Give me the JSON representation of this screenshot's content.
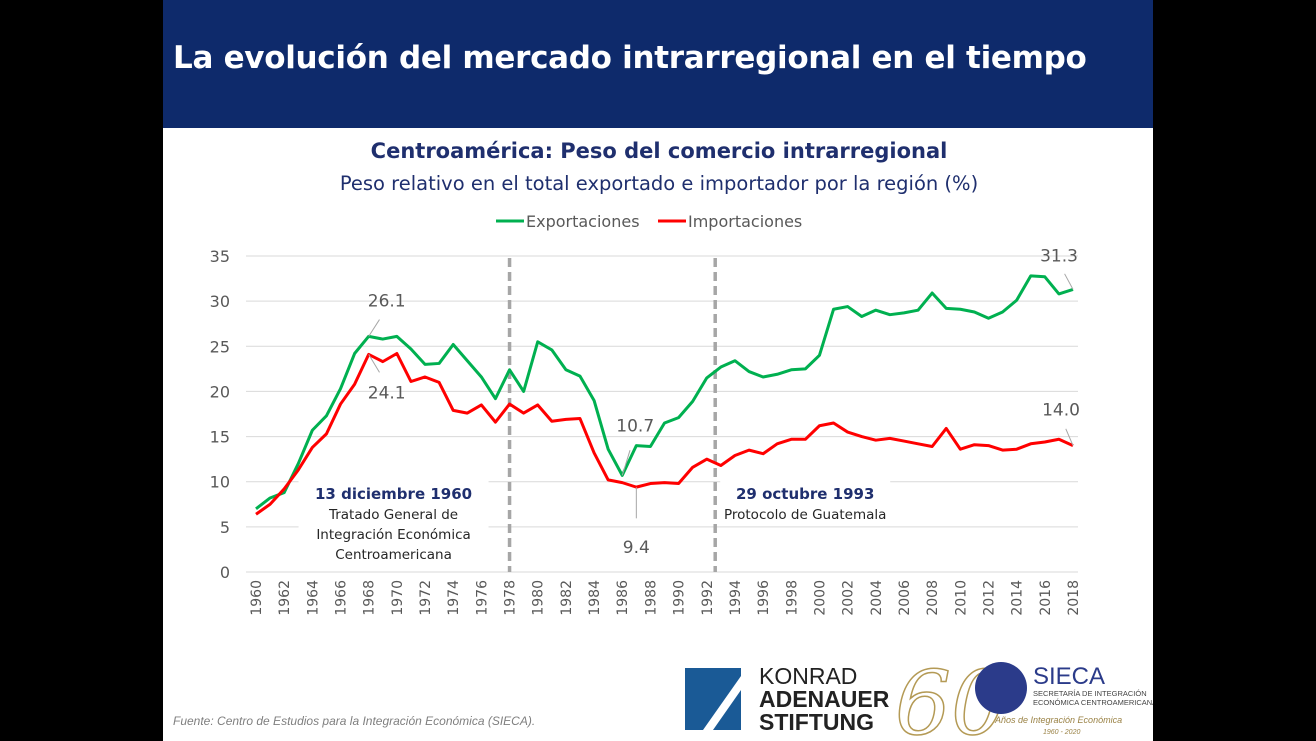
{
  "slide": {
    "title": "La evolución del mercado intrarregional en el tiempo"
  },
  "colors": {
    "header": "#0e2a6b",
    "exports": "#00b050",
    "imports": "#ff0000",
    "annotation_title": "#1f2f6e"
  },
  "chart_data": {
    "type": "line",
    "title": "Centroamérica: Peso del comercio intrarregional",
    "subtitle": "Peso relativo en el total exportado e importador por la región (%)",
    "xlabel": "",
    "ylabel": "",
    "ylim": [
      0,
      35
    ],
    "yticks": [
      0,
      5,
      10,
      15,
      20,
      25,
      30,
      35
    ],
    "xlim": [
      1960,
      2018
    ],
    "xticks": [
      1960,
      1962,
      1964,
      1966,
      1968,
      1970,
      1972,
      1974,
      1976,
      1978,
      1980,
      1982,
      1984,
      1986,
      1988,
      1990,
      1992,
      1994,
      1996,
      1998,
      2000,
      2002,
      2004,
      2006,
      2008,
      2010,
      2012,
      2014,
      2016,
      2018
    ],
    "grid": "horizontal",
    "legend": "top",
    "x": [
      1960,
      1961,
      1962,
      1963,
      1964,
      1965,
      1966,
      1967,
      1968,
      1969,
      1970,
      1971,
      1972,
      1973,
      1974,
      1975,
      1976,
      1977,
      1978,
      1979,
      1980,
      1981,
      1982,
      1983,
      1984,
      1985,
      1986,
      1987,
      1988,
      1989,
      1990,
      1991,
      1992,
      1993,
      1994,
      1995,
      1996,
      1997,
      1998,
      1999,
      2000,
      2001,
      2002,
      2003,
      2004,
      2005,
      2006,
      2007,
      2008,
      2009,
      2010,
      2011,
      2012,
      2013,
      2014,
      2015,
      2016,
      2017,
      2018
    ],
    "series": [
      {
        "name": "Exportaciones",
        "color": "#00b050",
        "values": [
          7.0,
          8.2,
          8.8,
          12.0,
          15.7,
          17.3,
          20.3,
          24.2,
          26.1,
          25.8,
          26.1,
          24.7,
          23.0,
          23.1,
          25.2,
          23.4,
          21.6,
          19.2,
          22.4,
          20.0,
          25.5,
          24.6,
          22.4,
          21.7,
          19.0,
          13.6,
          10.7,
          14.0,
          13.9,
          16.5,
          17.1,
          18.9,
          21.5,
          22.7,
          23.4,
          22.2,
          21.6,
          21.9,
          22.4,
          22.5,
          24.0,
          29.1,
          29.4,
          28.3,
          29.0,
          28.5,
          28.7,
          29.0,
          30.9,
          29.2,
          29.1,
          28.8,
          28.1,
          28.8,
          30.1,
          32.8,
          32.7,
          30.8,
          31.3
        ]
      },
      {
        "name": "Importaciones",
        "color": "#ff0000",
        "values": [
          6.4,
          7.5,
          9.2,
          11.3,
          13.8,
          15.3,
          18.6,
          20.8,
          24.1,
          23.3,
          24.2,
          21.1,
          21.6,
          21.0,
          17.9,
          17.6,
          18.5,
          16.6,
          18.6,
          17.6,
          18.5,
          16.7,
          16.9,
          17.0,
          13.2,
          10.2,
          9.9,
          9.4,
          9.8,
          9.9,
          9.8,
          11.6,
          12.5,
          11.8,
          12.9,
          13.5,
          13.1,
          14.2,
          14.7,
          14.7,
          16.2,
          16.5,
          15.5,
          15.0,
          14.6,
          14.8,
          14.5,
          14.2,
          13.9,
          15.9,
          13.6,
          14.1,
          14.0,
          13.5,
          13.6,
          14.2,
          14.4,
          14.7,
          14.0
        ]
      }
    ],
    "data_labels": [
      {
        "series": "Exportaciones",
        "x": 1968,
        "text": "26.1"
      },
      {
        "series": "Importaciones",
        "x": 1968,
        "text": "24.1"
      },
      {
        "series": "Exportaciones",
        "x": 1986,
        "text": "10.7"
      },
      {
        "series": "Importaciones",
        "x": 1987,
        "text": "9.4"
      },
      {
        "series": "Exportaciones",
        "x": 2018,
        "text": "31.3"
      },
      {
        "series": "Importaciones",
        "x": 2018,
        "text": "14.0"
      }
    ],
    "reference_lines": [
      {
        "x": 1978,
        "title": "13 diciembre 1960",
        "text": [
          "Tratado General de",
          "Integración Económica",
          "Centroamericana"
        ]
      },
      {
        "x": 1992.6,
        "title": "29 octubre 1993",
        "text": [
          "Protocolo de Guatemala"
        ]
      }
    ]
  },
  "source": "Fuente: Centro de Estudios para la Integración Económica (SIECA).",
  "logos": {
    "kas": [
      "KONRAD",
      "ADENAUER",
      "STIFTUNG"
    ],
    "sixty": "60",
    "sieca": "SIECA",
    "sieca_sub": [
      "SECRETARÍA DE INTEGRACIÓN",
      "ECONÓMICA CENTROAMERICANA"
    ],
    "sieca_tagline": "Años de Integración Económica",
    "sieca_years": "1960 - 2020"
  }
}
